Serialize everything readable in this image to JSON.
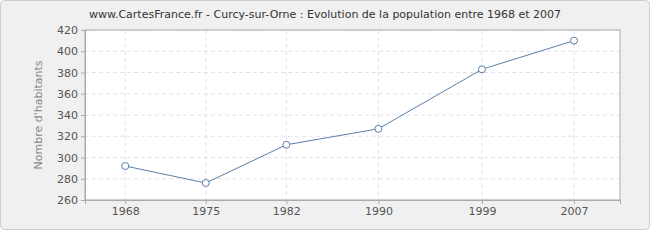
{
  "chart_data": {
    "type": "line",
    "title": "www.CartesFrance.fr - Curcy-sur-Orne : Evolution de la population entre 1968 et 2007",
    "y_label": "Nombre d'habitants",
    "x": [
      1968,
      1975,
      1982,
      1990,
      1999,
      2007
    ],
    "values": [
      292,
      276,
      312,
      327,
      383,
      410
    ],
    "color": "#5a7fa8",
    "marker": "circle",
    "xlim": [
      1964.5,
      2011
    ],
    "xticks": [
      1968,
      1975,
      1982,
      1990,
      1999,
      2007
    ],
    "ylim": [
      260,
      420
    ],
    "yticks": [
      260,
      280,
      300,
      320,
      340,
      360,
      380,
      400,
      420
    ],
    "grid": true
  }
}
